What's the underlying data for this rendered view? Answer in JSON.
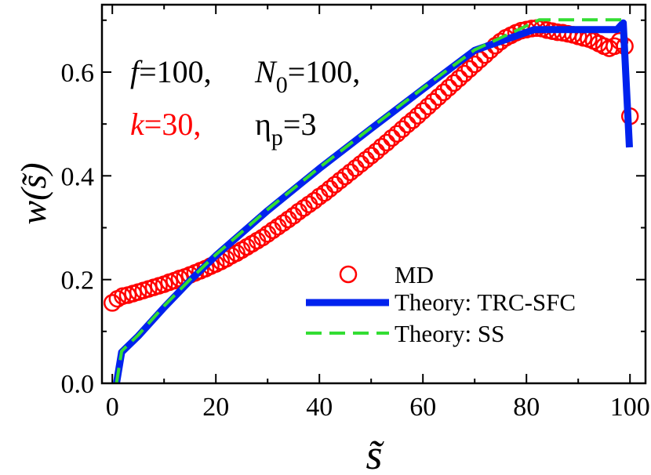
{
  "chart_data": {
    "type": "line",
    "title": "",
    "xlabel": "s̃",
    "ylabel": "w(s̃)",
    "xlim": [
      -2,
      103
    ],
    "ylim": [
      0.0,
      0.73
    ],
    "x_ticks": [
      0,
      20,
      40,
      60,
      80,
      100
    ],
    "x_tick_labels": [
      "0",
      "20",
      "40",
      "60",
      "80",
      "100"
    ],
    "y_ticks": [
      0.0,
      0.2,
      0.4,
      0.6
    ],
    "y_tick_labels": [
      "0.0",
      "0.2",
      "0.4",
      "0.6"
    ],
    "annotations": {
      "f": {
        "var": "f",
        "text": "=100,"
      },
      "n0": {
        "var": "N",
        "sub": "0",
        "text": "=100,"
      },
      "k": {
        "var": "k",
        "text": "=30,",
        "color": "#ff0000"
      },
      "eta": {
        "var": "η",
        "sub": "p",
        "text": "=3"
      }
    },
    "legend_position": "bottom-right",
    "series": [
      {
        "name": "MD",
        "style": "markers",
        "color": "#ff0000",
        "x": [
          0,
          1,
          2,
          3,
          4,
          5,
          6,
          7,
          8,
          9,
          10,
          11,
          12,
          13,
          14,
          15,
          16,
          17,
          18,
          19,
          20,
          21,
          22,
          23,
          24,
          25,
          26,
          27,
          28,
          29,
          30,
          31,
          32,
          33,
          34,
          35,
          36,
          37,
          38,
          39,
          40,
          41,
          42,
          43,
          44,
          45,
          46,
          47,
          48,
          49,
          50,
          51,
          52,
          53,
          54,
          55,
          56,
          57,
          58,
          59,
          60,
          61,
          62,
          63,
          64,
          65,
          66,
          67,
          68,
          69,
          70,
          71,
          72,
          73,
          74,
          75,
          76,
          77,
          78,
          79,
          80,
          81,
          82,
          83,
          84,
          85,
          86,
          87,
          88,
          89,
          90,
          91,
          92,
          93,
          94,
          95,
          96,
          97,
          98,
          99,
          100
        ],
        "y": [
          0.155,
          0.163,
          0.168,
          0.17,
          0.173,
          0.176,
          0.179,
          0.182,
          0.185,
          0.188,
          0.191,
          0.195,
          0.198,
          0.202,
          0.205,
          0.209,
          0.213,
          0.217,
          0.221,
          0.226,
          0.23,
          0.235,
          0.24,
          0.246,
          0.251,
          0.257,
          0.263,
          0.269,
          0.275,
          0.281,
          0.288,
          0.295,
          0.302,
          0.309,
          0.316,
          0.323,
          0.331,
          0.338,
          0.345,
          0.352,
          0.36,
          0.367,
          0.375,
          0.383,
          0.391,
          0.399,
          0.407,
          0.415,
          0.423,
          0.431,
          0.439,
          0.447,
          0.456,
          0.464,
          0.473,
          0.481,
          0.49,
          0.499,
          0.507,
          0.516,
          0.525,
          0.534,
          0.543,
          0.552,
          0.561,
          0.57,
          0.579,
          0.588,
          0.597,
          0.606,
          0.615,
          0.624,
          0.633,
          0.642,
          0.651,
          0.659,
          0.666,
          0.671,
          0.676,
          0.68,
          0.682,
          0.684,
          0.685,
          0.684,
          0.681,
          0.679,
          0.677,
          0.676,
          0.674,
          0.672,
          0.669,
          0.666,
          0.664,
          0.66,
          0.655,
          0.65,
          0.646,
          0.65,
          0.66,
          0.65,
          0.515
        ]
      },
      {
        "name": "Theory: TRC-SFC",
        "style": "line",
        "color": "#0022ee",
        "x": [
          0.8,
          1.8,
          5,
          10,
          15,
          20,
          30,
          40,
          50,
          60,
          70,
          81.5,
          88,
          97.5,
          98.7,
          99.9
        ],
        "y": [
          0.0,
          0.06,
          0.091,
          0.146,
          0.198,
          0.246,
          0.333,
          0.414,
          0.491,
          0.567,
          0.642,
          0.682,
          0.682,
          0.682,
          0.695,
          0.455
        ]
      },
      {
        "name": "Theory: SS",
        "style": "dashed",
        "color": "#33dd33",
        "x": [
          0.8,
          1.8,
          5,
          10,
          15,
          20,
          30,
          40,
          50,
          60,
          70,
          80,
          82.5,
          90,
          98.5
        ],
        "y": [
          0.0,
          0.062,
          0.093,
          0.149,
          0.2,
          0.248,
          0.335,
          0.416,
          0.493,
          0.569,
          0.643,
          0.689,
          0.701,
          0.701,
          0.701
        ]
      }
    ]
  }
}
